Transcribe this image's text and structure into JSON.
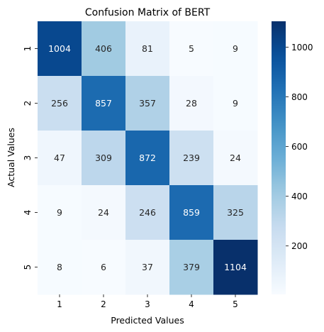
{
  "chart_data": {
    "type": "heatmap",
    "title": "Confusion Matrix of BERT",
    "xlabel": "Predicted Values",
    "ylabel": "Actual Values",
    "x_categories": [
      "1",
      "2",
      "3",
      "4",
      "5"
    ],
    "y_categories": [
      "1",
      "2",
      "3",
      "4",
      "5"
    ],
    "values": [
      [
        1004,
        406,
        81,
        5,
        9
      ],
      [
        256,
        857,
        357,
        28,
        9
      ],
      [
        47,
        309,
        872,
        239,
        24
      ],
      [
        9,
        24,
        246,
        859,
        325
      ],
      [
        8,
        6,
        37,
        379,
        1104
      ]
    ],
    "colormap": "Blues",
    "vmin": 5,
    "vmax": 1104,
    "colorbar_ticks": [
      200,
      400,
      600,
      800,
      1000
    ]
  }
}
